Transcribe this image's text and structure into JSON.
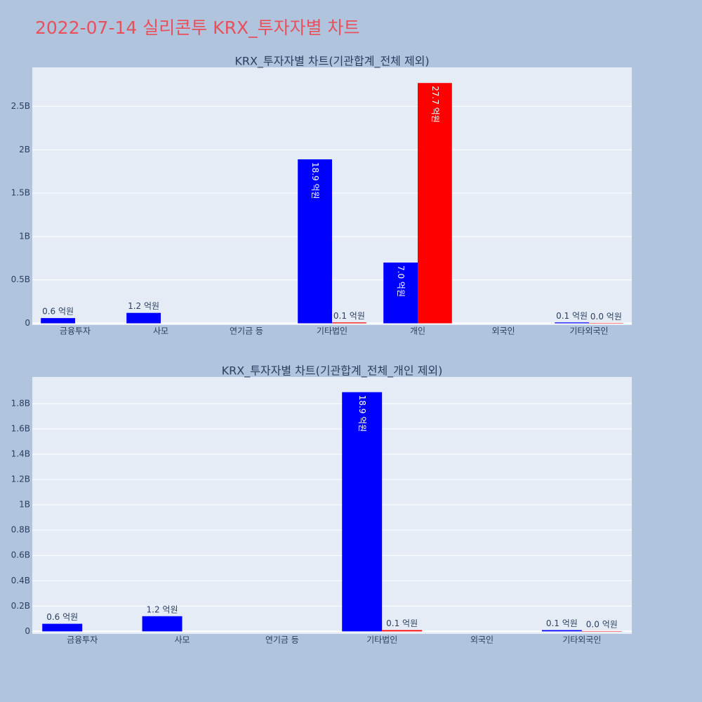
{
  "title": "2022-07-14 실리콘투 KRX_투자자별 차트",
  "chart_data": [
    {
      "type": "bar",
      "title": "KRX_투자자별 차트(기관합계_전체 제외)",
      "categories": [
        "금융투자",
        "사모",
        "연기금 등",
        "기타법인",
        "개인",
        "외국인",
        "기타외국인"
      ],
      "series": [
        {
          "color": "#0000ff",
          "values": [
            60000000,
            120000000,
            null,
            1890000000,
            700000000,
            null,
            10000000
          ],
          "value_labels": [
            "0.6 억원",
            "1.2 억원",
            null,
            "18.9 억원",
            "7.0 억원",
            null,
            "0.1 억원"
          ]
        },
        {
          "color": "#ff0000",
          "values": [
            null,
            null,
            null,
            10000000,
            2770000000,
            null,
            2000000
          ],
          "value_labels": [
            null,
            null,
            null,
            "0.1 억원",
            "27.7 억원",
            null,
            "0.0 억원"
          ]
        }
      ],
      "ylim": [
        -20000000,
        2950000000
      ],
      "yticks": [
        0,
        {
          "value": 500000000,
          "label": "0.5B"
        },
        {
          "value": 1000000000,
          "label": "1B"
        },
        {
          "value": 1500000000,
          "label": "1.5B"
        },
        {
          "value": 2000000000,
          "label": "2B"
        },
        {
          "value": 2500000000,
          "label": "2.5B"
        }
      ],
      "grid": true
    },
    {
      "type": "bar",
      "title": "KRX_투자자별 차트(기관합계_전체_개인 제외)",
      "categories": [
        "금융투자",
        "사모",
        "연기금 등",
        "기타법인",
        "외국인",
        "기타외국인"
      ],
      "series": [
        {
          "color": "#0000ff",
          "values": [
            60000000,
            120000000,
            null,
            1890000000,
            null,
            10000000
          ],
          "value_labels": [
            "0.6 억원",
            "1.2 억원",
            null,
            "18.9 억원",
            null,
            "0.1 억원"
          ]
        },
        {
          "color": "#ff0000",
          "values": [
            null,
            null,
            null,
            10000000,
            null,
            2000000
          ],
          "value_labels": [
            null,
            null,
            null,
            "0.1 억원",
            null,
            "0.0 억원"
          ]
        }
      ],
      "ylim": [
        -20000000,
        2010000000
      ],
      "yticks": [
        0,
        {
          "value": 200000000,
          "label": "0.2B"
        },
        {
          "value": 400000000,
          "label": "0.4B"
        },
        {
          "value": 600000000,
          "label": "0.6B"
        },
        {
          "value": 800000000,
          "label": "0.8B"
        },
        {
          "value": 1000000000,
          "label": "1B"
        },
        {
          "value": 1200000000,
          "label": "1.2B"
        },
        {
          "value": 1400000000,
          "label": "1.4B"
        },
        {
          "value": 1600000000,
          "label": "1.6B"
        },
        {
          "value": 1800000000,
          "label": "1.8B"
        }
      ],
      "grid": true
    }
  ]
}
